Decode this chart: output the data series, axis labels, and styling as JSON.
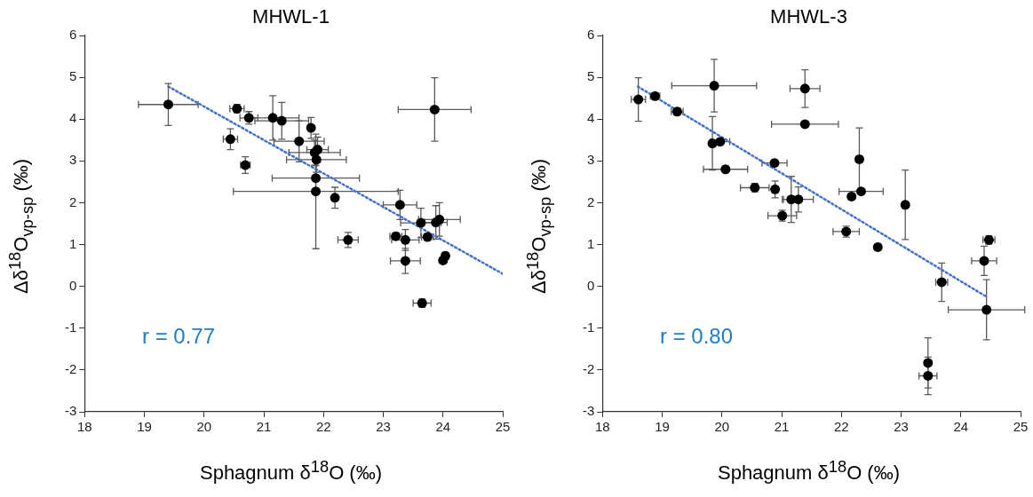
{
  "chart_data": [
    {
      "type": "scatter",
      "title": "MHWL-1",
      "xlabel": "Sphagnum δ$^{18}$O (‰)",
      "ylabel": "Δδ$^{18}$O$_{vp-sp}$ (‰)",
      "annotations": [
        "r = 0.77"
      ],
      "xlim": [
        18,
        25
      ],
      "ylim": [
        -3,
        6
      ],
      "xticks": [
        18,
        19,
        20,
        21,
        22,
        23,
        24,
        25
      ],
      "yticks": [
        -3,
        -2,
        -1,
        0,
        1,
        2,
        3,
        4,
        5,
        6
      ],
      "grid": false,
      "legend": false,
      "marker": "circle",
      "series": [
        {
          "type": "scatter",
          "color": "#000000",
          "x": [
            19.4,
            20.55,
            20.75,
            21.15,
            21.3,
            21.59,
            20.44,
            20.69,
            21.79,
            21.9,
            21.85,
            21.88,
            21.87,
            21.87,
            22.19,
            22.41,
            23.28,
            23.63,
            23.88,
            23.94,
            23.21,
            23.37,
            23.74,
            23.37,
            24.0,
            24.04,
            23.65,
            23.86
          ],
          "values": [
            4.35,
            4.25,
            4.03,
            4.03,
            3.96,
            3.47,
            3.52,
            2.9,
            3.79,
            3.27,
            3.2,
            3.03,
            2.59,
            2.27,
            2.12,
            1.11,
            1.95,
            1.52,
            1.53,
            1.6,
            1.2,
            1.11,
            1.18,
            0.61,
            0.62,
            0.73,
            -0.4,
            4.23
          ],
          "xerrors": [
            0.5,
            0.12,
            0.15,
            0.44,
            0.45,
            0.42,
            0.12,
            0.08,
            0.05,
            0.18,
            0.43,
            0.5,
            0.73,
            1.38,
            0.05,
            0.17,
            0.28,
            0.34,
            0.19,
            0.35,
            0.1,
            0.23,
            0.1,
            0.25,
            0.05,
            0.05,
            0.15,
            0.61
          ],
          "errors": [
            0.5,
            0.1,
            0.15,
            0.53,
            0.44,
            0.49,
            0.25,
            0.2,
            0.25,
            0.3,
            0.3,
            0.3,
            0.3,
            1.37,
            0.25,
            0.18,
            0.35,
            0.35,
            0.4,
            0.4,
            0.08,
            0.25,
            0.08,
            0.3,
            0.05,
            0.08,
            0.1,
            0.76
          ]
        },
        {
          "type": "line",
          "color": "#4472c4",
          "line_style": "dotted",
          "marker": "none",
          "x": [
            19.4,
            25
          ],
          "values": [
            4.78,
            0.3
          ]
        }
      ]
    },
    {
      "type": "scatter",
      "title": "MHWL-3",
      "xlabel": "Sphagnum δ$^{18}$O (‰)",
      "ylabel": "Δδ$^{18}$O$_{vp-sp}$ (‰)",
      "annotations": [
        "r = 0.80"
      ],
      "xlim": [
        18,
        25
      ],
      "ylim": [
        -3,
        6
      ],
      "xticks": [
        18,
        19,
        20,
        21,
        22,
        23,
        24,
        25
      ],
      "yticks": [
        -3,
        -2,
        -1,
        0,
        1,
        2,
        3,
        4,
        5,
        6
      ],
      "grid": false,
      "legend": false,
      "marker": "circle",
      "series": [
        {
          "type": "scatter",
          "color": "#000000",
          "x": [
            18.6,
            18.88,
            19.25,
            19.87,
            21.39,
            21.39,
            19.84,
            19.97,
            20.06,
            20.88,
            20.55,
            20.89,
            21.16,
            21.28,
            21.01,
            22.08,
            22.17,
            22.33,
            22.3,
            22.61,
            23.07,
            23.68,
            24.43,
            24.39,
            24.47,
            23.45,
            23.45
          ],
          "values": [
            4.47,
            4.55,
            4.18,
            4.8,
            4.73,
            3.88,
            3.42,
            3.46,
            2.8,
            2.95,
            2.36,
            2.32,
            2.08,
            2.08,
            1.69,
            1.31,
            2.15,
            2.27,
            3.04,
            0.94,
            1.95,
            0.1,
            -0.56,
            0.61,
            1.11,
            -1.83,
            -2.14
          ],
          "xerrors": [
            0.12,
            0.08,
            0.1,
            0.71,
            0.25,
            0.56,
            0.05,
            0.16,
            0.37,
            0.21,
            0.24,
            0.05,
            0.15,
            0.25,
            0.24,
            0.22,
            0.05,
            0.37,
            0.05,
            0.05,
            0.05,
            0.1,
            0.64,
            0.21,
            0.1,
            0.05,
            0.15
          ],
          "errors": [
            0.52,
            0.08,
            0.08,
            0.63,
            0.45,
            0.05,
            0.64,
            0.05,
            0.05,
            0.05,
            0.1,
            0.2,
            0.55,
            0.3,
            0.13,
            0.13,
            0.05,
            0.05,
            0.75,
            0.05,
            0.83,
            0.46,
            0.72,
            0.35,
            0.1,
            0.6,
            0.45
          ]
        },
        {
          "type": "line",
          "color": "#4472c4",
          "line_style": "dotted",
          "marker": "none",
          "x": [
            18.59,
            24.42
          ],
          "values": [
            4.78,
            -0.24
          ]
        }
      ]
    }
  ]
}
